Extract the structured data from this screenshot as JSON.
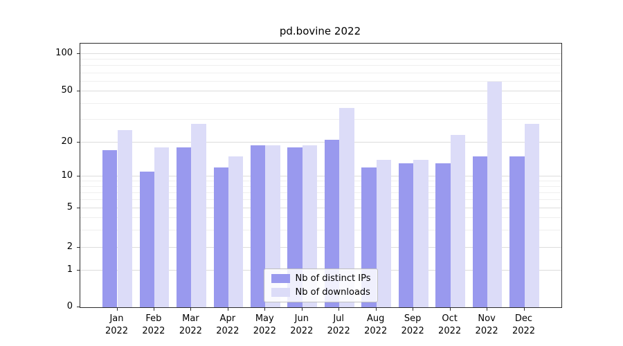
{
  "chart_data": {
    "type": "bar",
    "title": "pd.bovine 2022",
    "categories": [
      "Jan",
      "Feb",
      "Mar",
      "Apr",
      "May",
      "Jun",
      "Jul",
      "Aug",
      "Sep",
      "Oct",
      "Nov",
      "Dec"
    ],
    "category_year": "2022",
    "series": [
      {
        "name": "Nb of distinct IPs",
        "color": "#9999ee",
        "values": [
          17,
          11,
          18,
          12,
          19,
          18,
          21,
          12,
          13,
          13,
          15,
          15
        ]
      },
      {
        "name": "Nb of downloads",
        "color": "#dcdcf8",
        "values": [
          25,
          18,
          28,
          15,
          19,
          19,
          37,
          14,
          14,
          23,
          60,
          28
        ]
      }
    ],
    "y_ticks": [
      0,
      1,
      2,
      5,
      10,
      20,
      50,
      100
    ],
    "y_minor_ticks": [
      3,
      4,
      6,
      7,
      8,
      9,
      30,
      40,
      60,
      70,
      80,
      90
    ],
    "y_scale": "symlog",
    "ylim": [
      0,
      128
    ],
    "grid": true,
    "legend_position": "lower center"
  }
}
